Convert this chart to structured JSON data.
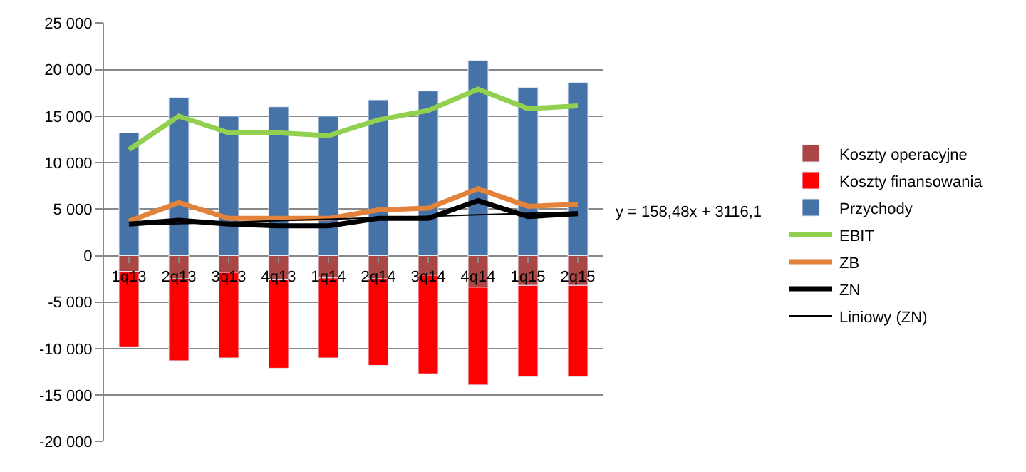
{
  "chart_data": {
    "type": "bar",
    "stacked": true,
    "categories": [
      "1q13",
      "2q13",
      "3q13",
      "4q13",
      "1q14",
      "2q14",
      "3q14",
      "4q14",
      "1q15",
      "2q15"
    ],
    "series": [
      {
        "name": "Koszty operacyjne",
        "color": "#aa4643",
        "values": [
          -1700,
          -2500,
          -1800,
          -2600,
          -2400,
          -2500,
          -2100,
          -3400,
          -3200,
          -3200
        ]
      },
      {
        "name": "Koszty finansowania",
        "color": "#ff0000",
        "values": [
          -8100,
          -8800,
          -9200,
          -9500,
          -8600,
          -9300,
          -10600,
          -10500,
          -9800,
          -9800
        ]
      },
      {
        "name": "Przychody",
        "color": "#4572a7",
        "values": [
          13200,
          17000,
          15000,
          16000,
          15000,
          16750,
          17700,
          21000,
          18100,
          18600
        ]
      },
      {
        "name": "EBIT",
        "type": "line",
        "color": "#92d050",
        "values": [
          11400,
          15000,
          13200,
          13200,
          12900,
          14600,
          15600,
          17900,
          15800,
          16100
        ]
      },
      {
        "name": "ZB",
        "type": "line",
        "color": "#e3823a",
        "values": [
          3700,
          5700,
          4000,
          4000,
          4000,
          4900,
          5100,
          7200,
          5300,
          5500
        ]
      },
      {
        "name": "ZN",
        "type": "line",
        "color": "#000000",
        "values": [
          3400,
          3800,
          3400,
          3200,
          3200,
          4000,
          4000,
          5900,
          4200,
          4500
        ]
      },
      {
        "name": "Liniowy (ZN)",
        "type": "line",
        "color": "#000000",
        "values": [
          3275,
          3433,
          3592,
          3750,
          3908,
          4067,
          4226,
          4384,
          4542,
          4701
        ]
      }
    ],
    "ylim": [
      -20000,
      25000
    ],
    "yticks": [
      {
        "value": -20000,
        "label": "-20 000"
      },
      {
        "value": -15000,
        "label": "-15 000"
      },
      {
        "value": -10000,
        "label": "-10 000"
      },
      {
        "value": -5000,
        "label": "-5 000"
      },
      0,
      {
        "value": 5000,
        "label": "5 000"
      },
      {
        "value": 10000,
        "label": "10 000"
      },
      {
        "value": 15000,
        "label": "15 000"
      },
      {
        "value": 20000,
        "label": "20 000"
      },
      {
        "value": 25000,
        "label": "25 000"
      }
    ],
    "grid": "y",
    "legend": "right",
    "marker": "none",
    "annotations": [
      "y = 158,48x + 3116,1"
    ]
  }
}
